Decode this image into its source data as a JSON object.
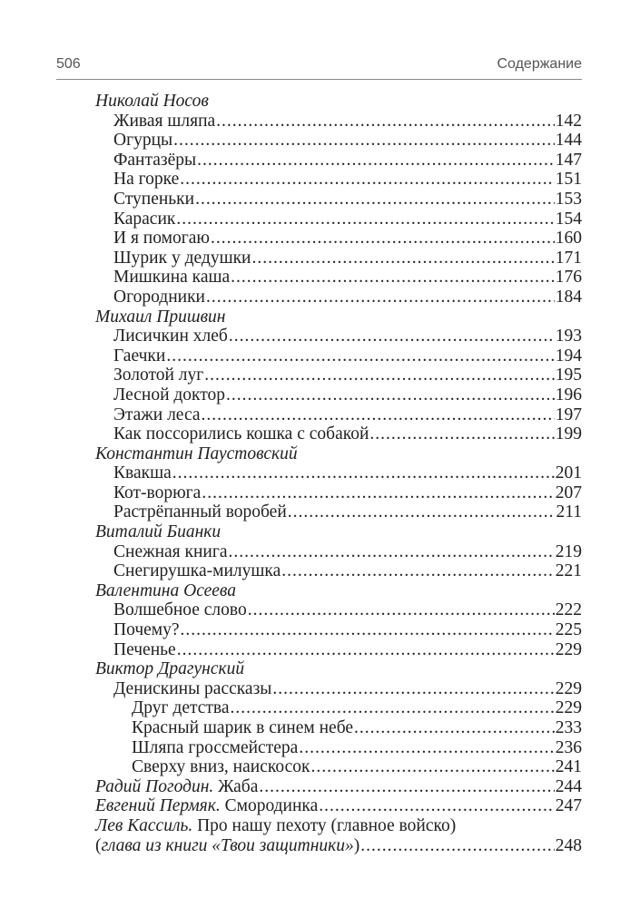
{
  "header": {
    "page_number": "506",
    "section": "Содержание"
  },
  "toc": [
    {
      "level": 0,
      "segs": [
        {
          "t": "Николай Носов",
          "i": true
        }
      ]
    },
    {
      "level": 1,
      "segs": [
        {
          "t": "Живая шляпа"
        }
      ],
      "page": "142"
    },
    {
      "level": 1,
      "segs": [
        {
          "t": "Огурцы"
        }
      ],
      "page": "144"
    },
    {
      "level": 1,
      "segs": [
        {
          "t": "Фантазёры"
        }
      ],
      "page": "147"
    },
    {
      "level": 1,
      "segs": [
        {
          "t": "На горке"
        }
      ],
      "page": "151"
    },
    {
      "level": 1,
      "segs": [
        {
          "t": "Ступеньки"
        }
      ],
      "page": "153"
    },
    {
      "level": 1,
      "segs": [
        {
          "t": "Карасик"
        }
      ],
      "page": "154"
    },
    {
      "level": 1,
      "segs": [
        {
          "t": "И я помогаю"
        }
      ],
      "page": "160"
    },
    {
      "level": 1,
      "segs": [
        {
          "t": "Шурик у дедушки"
        }
      ],
      "page": "171"
    },
    {
      "level": 1,
      "segs": [
        {
          "t": "Мишкина каша"
        }
      ],
      "page": "176"
    },
    {
      "level": 1,
      "segs": [
        {
          "t": "Огородники"
        }
      ],
      "page": "184"
    },
    {
      "level": 0,
      "segs": [
        {
          "t": "Михаил Пришвин",
          "i": true
        }
      ]
    },
    {
      "level": 1,
      "segs": [
        {
          "t": "Лисичкин хлеб"
        }
      ],
      "page": "193"
    },
    {
      "level": 1,
      "segs": [
        {
          "t": "Гаечки"
        }
      ],
      "page": "194"
    },
    {
      "level": 1,
      "segs": [
        {
          "t": "Золотой луг"
        }
      ],
      "page": "195"
    },
    {
      "level": 1,
      "segs": [
        {
          "t": "Лесной доктор"
        }
      ],
      "page": "196"
    },
    {
      "level": 1,
      "segs": [
        {
          "t": "Этажи леса"
        }
      ],
      "page": "197"
    },
    {
      "level": 1,
      "segs": [
        {
          "t": "Как поссорились кошка с собакой"
        }
      ],
      "page": "199"
    },
    {
      "level": 0,
      "segs": [
        {
          "t": "Константин Паустовский",
          "i": true
        }
      ]
    },
    {
      "level": 1,
      "segs": [
        {
          "t": "Квакша"
        }
      ],
      "page": "201"
    },
    {
      "level": 1,
      "segs": [
        {
          "t": "Кот-ворюга"
        }
      ],
      "page": "207"
    },
    {
      "level": 1,
      "segs": [
        {
          "t": "Растрёпанный воробей"
        }
      ],
      "page": "211"
    },
    {
      "level": 0,
      "segs": [
        {
          "t": "Виталий Бианки",
          "i": true
        }
      ]
    },
    {
      "level": 1,
      "segs": [
        {
          "t": "Снежная книга"
        }
      ],
      "page": "219"
    },
    {
      "level": 1,
      "segs": [
        {
          "t": "Снегирушка-милушка"
        }
      ],
      "page": "221"
    },
    {
      "level": 0,
      "segs": [
        {
          "t": "Валентина Осеева",
          "i": true
        }
      ]
    },
    {
      "level": 1,
      "segs": [
        {
          "t": "Волшебное слово"
        }
      ],
      "page": "222"
    },
    {
      "level": 1,
      "segs": [
        {
          "t": "Почему?"
        }
      ],
      "page": "225"
    },
    {
      "level": 1,
      "segs": [
        {
          "t": "Печенье"
        }
      ],
      "page": "229"
    },
    {
      "level": 0,
      "segs": [
        {
          "t": "Виктор Драгунский",
          "i": true
        }
      ]
    },
    {
      "level": 1,
      "segs": [
        {
          "t": "Денискины рассказы"
        }
      ],
      "page": "229"
    },
    {
      "level": 2,
      "segs": [
        {
          "t": "Друг детства"
        }
      ],
      "page": "229"
    },
    {
      "level": 2,
      "segs": [
        {
          "t": "Красный шарик в синем небе"
        }
      ],
      "page": "233"
    },
    {
      "level": 2,
      "segs": [
        {
          "t": "Шляпа гроссмейстера"
        }
      ],
      "page": "236"
    },
    {
      "level": 2,
      "segs": [
        {
          "t": "Сверху вниз, наискосок"
        }
      ],
      "page": "241"
    },
    {
      "level": 0,
      "segs": [
        {
          "t": "Радий Погодин.",
          "i": true
        },
        {
          "t": " Жаба"
        }
      ],
      "page": "244"
    },
    {
      "level": 0,
      "segs": [
        {
          "t": "Евгений Пермяк.",
          "i": true
        },
        {
          "t": " Смородинка"
        }
      ],
      "page": "247"
    },
    {
      "level": 0,
      "segs": [
        {
          "t": "Лев Кассиль.",
          "i": true
        },
        {
          "t": " Про нашу пехоту (главное войско)"
        }
      ]
    },
    {
      "level": 0,
      "segs": [
        {
          "t": "("
        },
        {
          "t": "глава из книги «Твои защитники»",
          "i": true
        },
        {
          "t": ")"
        }
      ],
      "page": "248"
    }
  ]
}
